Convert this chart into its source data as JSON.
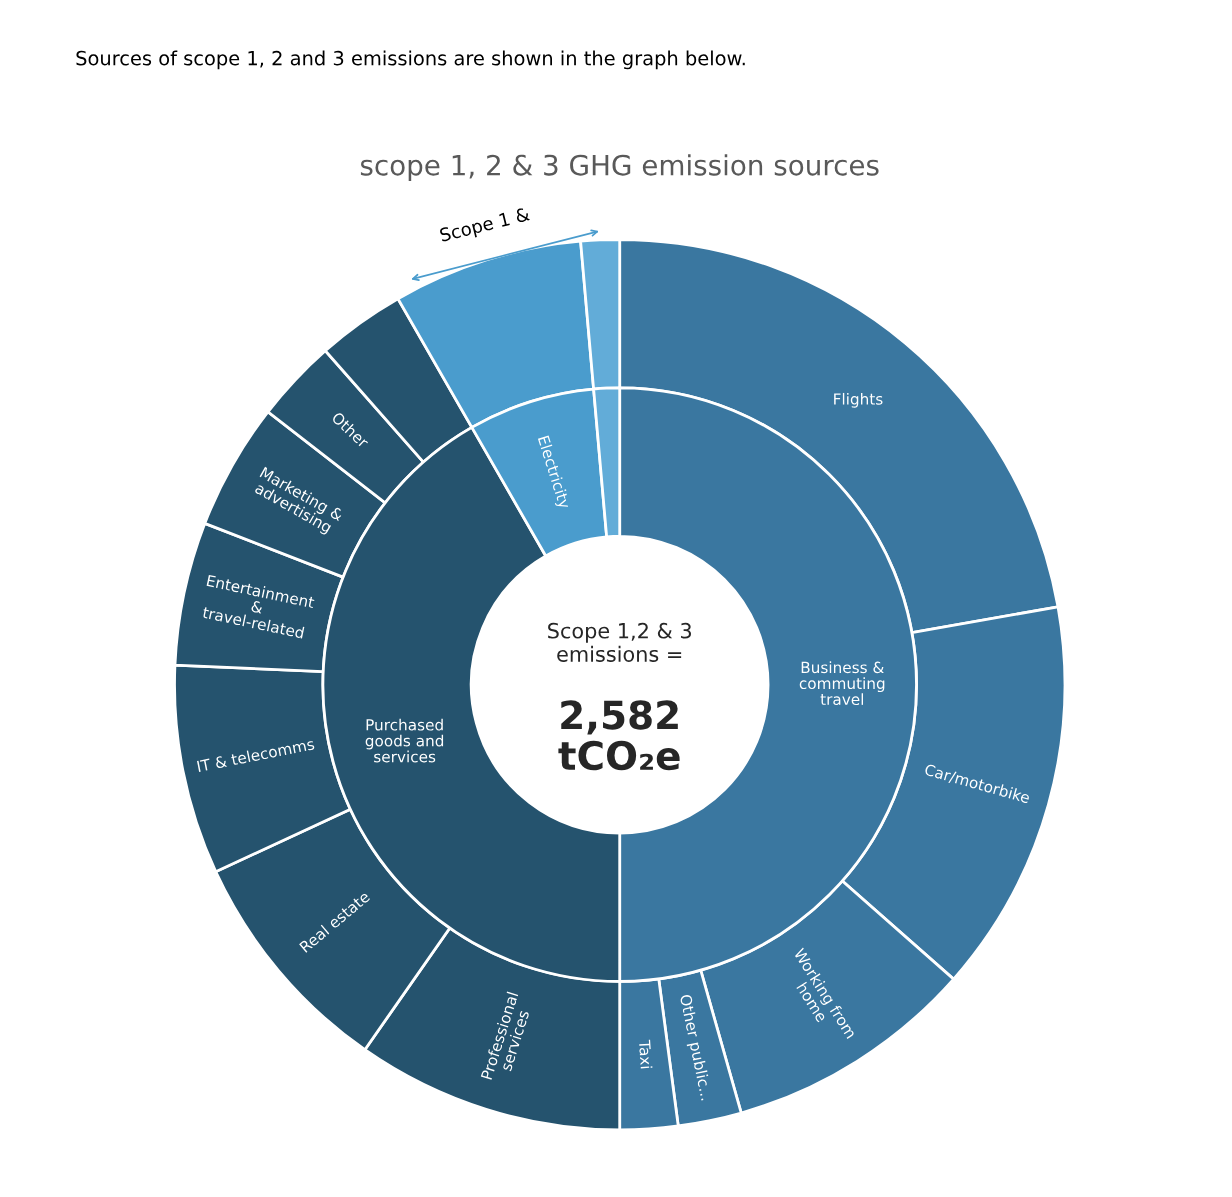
{
  "chart_data": {
    "type": "donut",
    "title": "scope 1, 2 & 3 GHG emission sources",
    "categories": [
      "Flights",
      "Car/motorbike",
      "Working from home",
      "Other public...",
      "Taxi",
      "Professional services",
      "Real estate",
      "IT & telecomms",
      "Entertainment & travel-related",
      "Marketing & advertising",
      "Other",
      null,
      null,
      null,
      null,
      null,
      null,
      null
    ],
    "colors": [
      "#3a77a0",
      "#3a77a0",
      "#3a77a0",
      "#3a77a0",
      "#3a77a0",
      "#25536e",
      "#25536e",
      "#25536e",
      "#25536e",
      "#25536e",
      "#25536e",
      "#25536e",
      "#4a9ccd",
      "#62acd8",
      "#3a77a0",
      "#25536e",
      "#4a9ccd",
      "#62acd8"
    ],
    "series": [
      {
        "values": [
          22.2,
          14.3,
          9.1,
          2.3,
          2.1,
          9.7,
          8.4,
          7.6,
          5.2,
          4.6,
          3.0,
          3.2,
          6.9,
          1.4,
          null,
          null,
          null,
          null
        ]
      },
      {
        "values": [
          null,
          null,
          null,
          null,
          null,
          null,
          null,
          null,
          null,
          null,
          null,
          null,
          null,
          null,
          50.0,
          41.7,
          6.9,
          1.4
        ]
      }
    ],
    "annotations": [
      "Sources of scope 1, 2 and 3 emissions are shown in the graph below.",
      "Scope 1,2 & 3 emissions =",
      "2,582 tCO₂e",
      "Scope 1 &",
      "Business & commuting travel",
      "Purchased goods and services",
      "Electricity"
    ]
  }
}
